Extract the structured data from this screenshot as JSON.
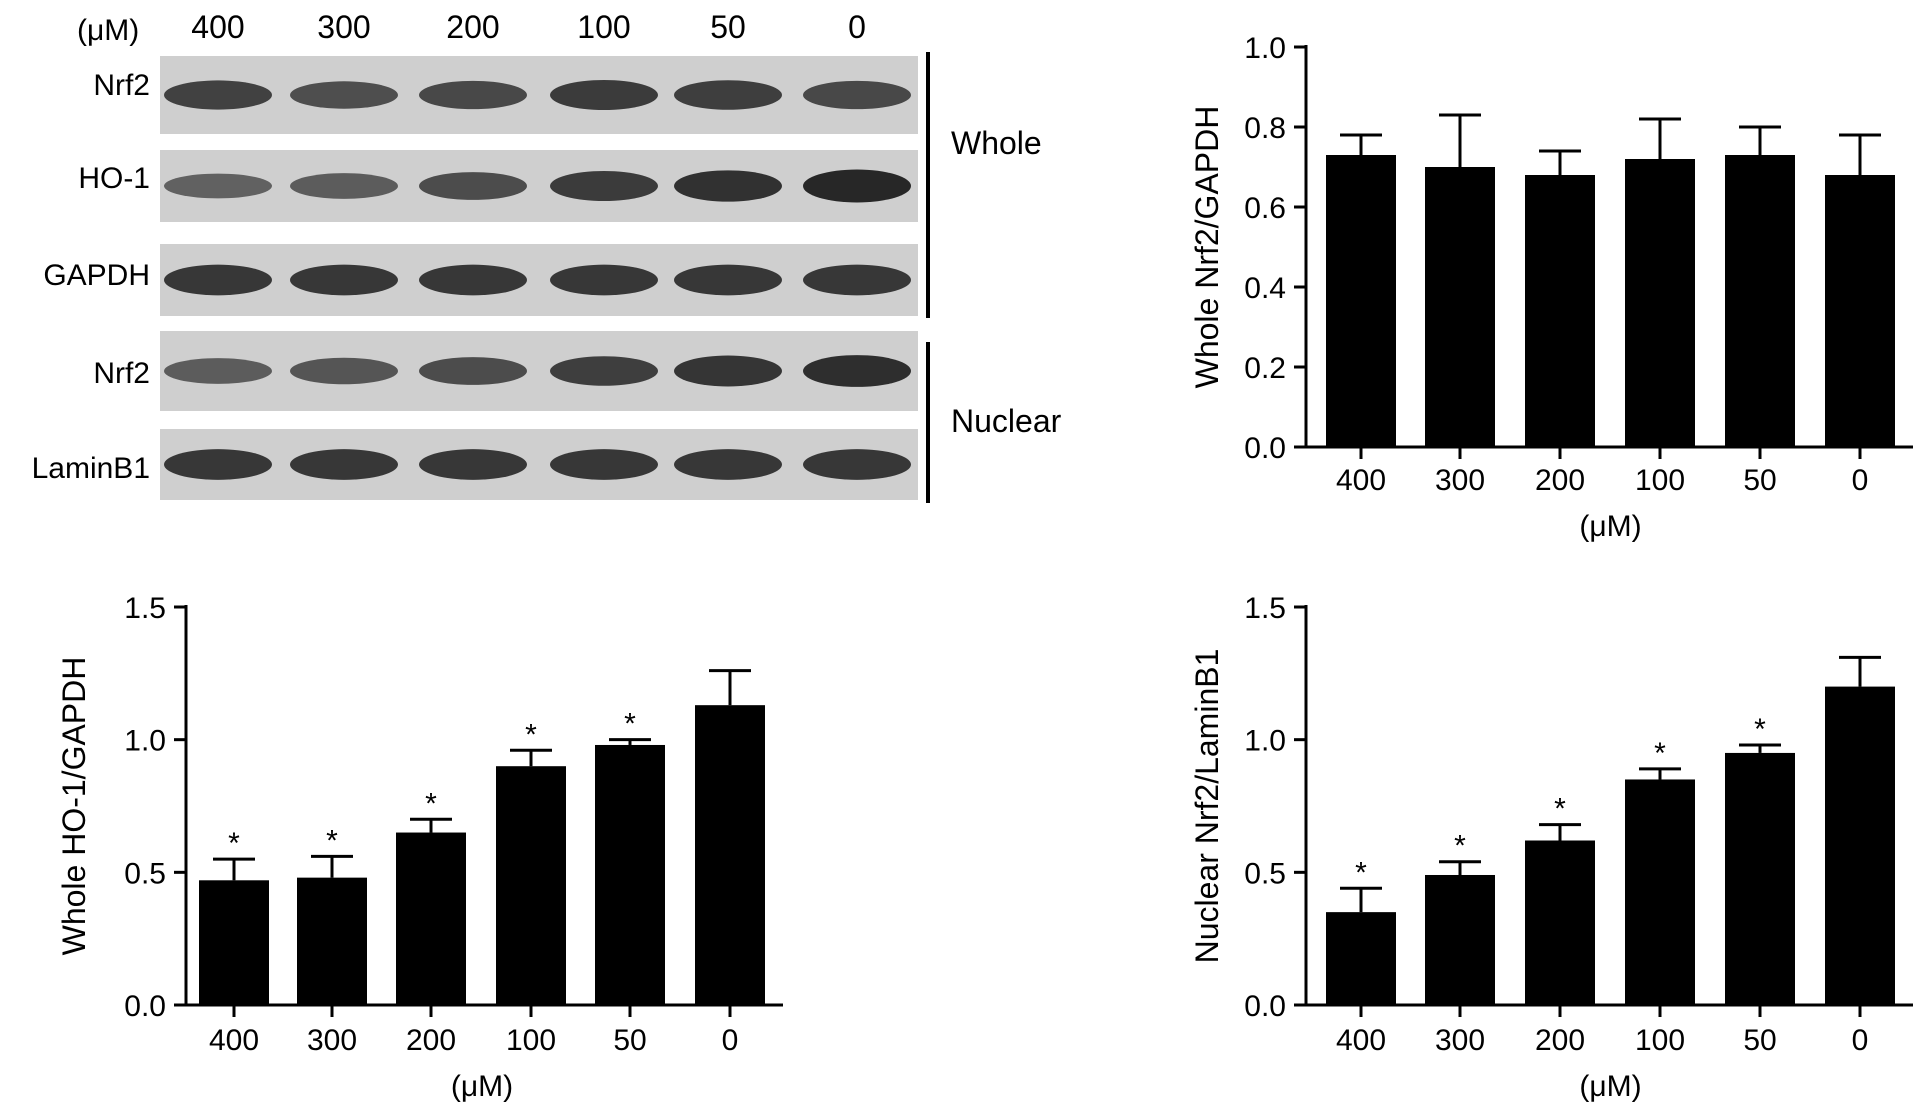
{
  "blot": {
    "unit_label": "(μM)",
    "lanes": [
      "400",
      "300",
      "200",
      "100",
      "50",
      "0"
    ],
    "rows": [
      {
        "label": "Nrf2",
        "band_intensity": [
          0.78,
          0.7,
          0.74,
          0.82,
          0.8,
          0.74
        ]
      },
      {
        "label": "HO-1",
        "band_intensity": [
          0.58,
          0.62,
          0.72,
          0.82,
          0.88,
          0.95
        ]
      },
      {
        "label": "GAPDH",
        "band_intensity": [
          0.85,
          0.85,
          0.85,
          0.85,
          0.85,
          0.85
        ]
      },
      {
        "label": "Nrf2",
        "band_intensity": [
          0.62,
          0.66,
          0.72,
          0.8,
          0.86,
          0.9
        ]
      },
      {
        "label": "LaminB1",
        "band_intensity": [
          0.85,
          0.85,
          0.85,
          0.85,
          0.85,
          0.85
        ]
      }
    ],
    "group_labels": [
      "Whole",
      "Nuclear"
    ]
  },
  "chart_data": [
    {
      "type": "bar",
      "ylabel": "Whole Nrf2/GAPDH",
      "xlabel": "(μM)",
      "categories": [
        "400",
        "300",
        "200",
        "100",
        "50",
        "0"
      ],
      "values": [
        0.73,
        0.7,
        0.68,
        0.72,
        0.73,
        0.68
      ],
      "errors": [
        0.05,
        0.13,
        0.06,
        0.1,
        0.07,
        0.1
      ],
      "significance": [
        "",
        "",
        "",
        "",
        "",
        ""
      ],
      "ylim": [
        0,
        1.0
      ],
      "yticks": [
        "0.0",
        "0.2",
        "0.4",
        "0.6",
        "0.8",
        "1.0"
      ]
    },
    {
      "type": "bar",
      "ylabel": "Whole HO-1/GAPDH",
      "xlabel": "(μM)",
      "categories": [
        "400",
        "300",
        "200",
        "100",
        "50",
        "0"
      ],
      "values": [
        0.47,
        0.48,
        0.65,
        0.9,
        0.98,
        1.13
      ],
      "errors": [
        0.08,
        0.08,
        0.05,
        0.06,
        0.02,
        0.13
      ],
      "significance": [
        "*",
        "*",
        "*",
        "*",
        "*",
        ""
      ],
      "ylim": [
        0,
        1.5
      ],
      "yticks": [
        "0.0",
        "0.5",
        "1.0",
        "1.5"
      ]
    },
    {
      "type": "bar",
      "ylabel": "Nuclear Nrf2/LaminB1",
      "xlabel": "(μM)",
      "categories": [
        "400",
        "300",
        "200",
        "100",
        "50",
        "0"
      ],
      "values": [
        0.35,
        0.49,
        0.62,
        0.85,
        0.95,
        1.2
      ],
      "errors": [
        0.09,
        0.05,
        0.06,
        0.04,
        0.03,
        0.11
      ],
      "significance": [
        "*",
        "*",
        "*",
        "*",
        "*",
        ""
      ],
      "ylim": [
        0,
        1.5
      ],
      "yticks": [
        "0.0",
        "0.5",
        "1.0",
        "1.5"
      ]
    }
  ]
}
